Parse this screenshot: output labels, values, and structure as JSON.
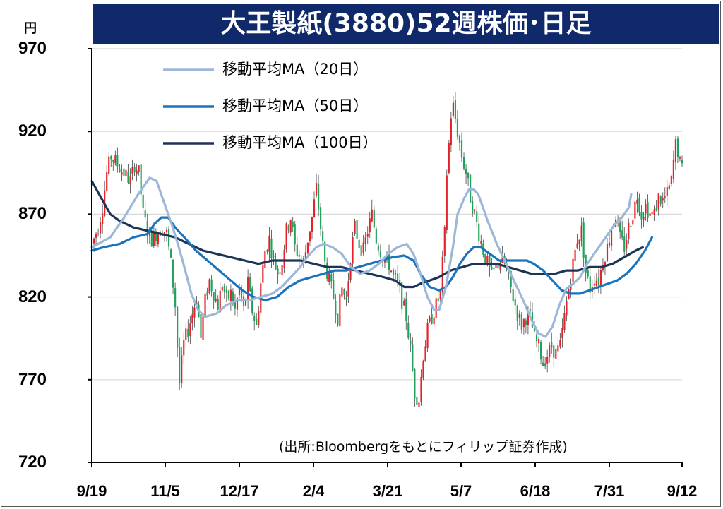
{
  "title": "大王製紙(3880)52週株価･日足",
  "unit": "円",
  "source": "(出所:Bloombergをもとにフィリップ証券作成)",
  "colors": {
    "title_bg": "#10296b",
    "title_text": "#ffffff",
    "up_candle": "#e8202a",
    "down_candle": "#1fa35b",
    "ma20": "#9db7d9",
    "ma50": "#1b74bb",
    "ma100": "#1c3455",
    "grid": "#d9d9d9"
  },
  "chart_data": {
    "type": "candlestick",
    "title": "大王製紙(3880)52週株価･日足",
    "ylabel": "円",
    "ylim": [
      720,
      970
    ],
    "yticks": [
      970,
      920,
      870,
      820,
      770,
      720
    ],
    "grid": "horizontal",
    "legend_position": "top-left",
    "x_tick_labels": [
      "9/19",
      "11/5",
      "12/17",
      "2/4",
      "3/21",
      "5/7",
      "6/18",
      "7/31",
      "9/12"
    ],
    "x_tick_positions": [
      0,
      32,
      62,
      94,
      126,
      158,
      190,
      222,
      254
    ],
    "n_days": 255,
    "price_anchors": [
      [
        0,
        852
      ],
      [
        3,
        862
      ],
      [
        5,
        875
      ],
      [
        7,
        895
      ],
      [
        9,
        905
      ],
      [
        12,
        900
      ],
      [
        15,
        895
      ],
      [
        18,
        890
      ],
      [
        20,
        900
      ],
      [
        22,
        895
      ],
      [
        24,
        870
      ],
      [
        26,
        860
      ],
      [
        28,
        855
      ],
      [
        30,
        858
      ],
      [
        33,
        862
      ],
      [
        35,
        858
      ],
      [
        37,
        840
      ],
      [
        39,
        815
      ],
      [
        40,
        790
      ],
      [
        41,
        768
      ],
      [
        43,
        792
      ],
      [
        45,
        800
      ],
      [
        47,
        810
      ],
      [
        49,
        820
      ],
      [
        51,
        795
      ],
      [
        53,
        818
      ],
      [
        55,
        830
      ],
      [
        57,
        822
      ],
      [
        59,
        815
      ],
      [
        61,
        828
      ],
      [
        63,
        818
      ],
      [
        65,
        822
      ],
      [
        67,
        812
      ],
      [
        69,
        825
      ],
      [
        71,
        812
      ],
      [
        73,
        828
      ],
      [
        75,
        812
      ],
      [
        77,
        802
      ],
      [
        79,
        828
      ],
      [
        81,
        848
      ],
      [
        83,
        855
      ],
      [
        85,
        842
      ],
      [
        87,
        835
      ],
      [
        89,
        842
      ],
      [
        91,
        860
      ],
      [
        93,
        868
      ],
      [
        95,
        850
      ],
      [
        97,
        845
      ],
      [
        99,
        840
      ],
      [
        101,
        855
      ],
      [
        103,
        868
      ],
      [
        105,
        886
      ],
      [
        107,
        862
      ],
      [
        109,
        840
      ],
      [
        111,
        830
      ],
      [
        113,
        820
      ],
      [
        115,
        808
      ],
      [
        117,
        825
      ],
      [
        119,
        818
      ],
      [
        121,
        845
      ],
      [
        123,
        862
      ],
      [
        125,
        852
      ],
      [
        127,
        848
      ],
      [
        129,
        860
      ],
      [
        131,
        870
      ],
      [
        133,
        855
      ],
      [
        135,
        848
      ],
      [
        137,
        842
      ],
      [
        139,
        840
      ],
      [
        141,
        832
      ],
      [
        143,
        828
      ],
      [
        145,
        818
      ],
      [
        147,
        808
      ],
      [
        149,
        788
      ],
      [
        151,
        762
      ],
      [
        153,
        758
      ],
      [
        155,
        785
      ],
      [
        157,
        800
      ],
      [
        159,
        808
      ],
      [
        161,
        815
      ],
      [
        163,
        822
      ],
      [
        165,
        858
      ],
      [
        166,
        895
      ],
      [
        168,
        930
      ],
      [
        169,
        935
      ],
      [
        171,
        920
      ],
      [
        173,
        905
      ],
      [
        175,
        895
      ],
      [
        177,
        880
      ],
      [
        179,
        870
      ],
      [
        181,
        858
      ],
      [
        183,
        848
      ],
      [
        185,
        840
      ],
      [
        187,
        832
      ],
      [
        189,
        838
      ],
      [
        191,
        842
      ],
      [
        193,
        840
      ],
      [
        195,
        830
      ],
      [
        197,
        820
      ],
      [
        199,
        810
      ],
      [
        201,
        803
      ],
      [
        203,
        808
      ],
      [
        205,
        808
      ],
      [
        207,
        795
      ],
      [
        209,
        790
      ],
      [
        211,
        780
      ],
      [
        213,
        785
      ],
      [
        215,
        790
      ],
      [
        217,
        786
      ],
      [
        219,
        790
      ],
      [
        221,
        808
      ],
      [
        223,
        825
      ],
      [
        225,
        840
      ],
      [
        227,
        855
      ],
      [
        229,
        860
      ],
      [
        231,
        835
      ],
      [
        233,
        825
      ],
      [
        235,
        832
      ],
      [
        237,
        830
      ],
      [
        239,
        842
      ],
      [
        241,
        850
      ],
      [
        243,
        862
      ],
      [
        245,
        870
      ],
      [
        247,
        855
      ],
      [
        249,
        850
      ],
      [
        251,
        862
      ],
      [
        253,
        870
      ],
      [
        255,
        882
      ],
      [
        257,
        870
      ],
      [
        259,
        875
      ],
      [
        261,
        870
      ],
      [
        263,
        870
      ],
      [
        265,
        880
      ],
      [
        267,
        878
      ],
      [
        269,
        882
      ],
      [
        271,
        890
      ],
      [
        272,
        902
      ],
      [
        273,
        912
      ],
      [
        274,
        908
      ],
      [
        275,
        900
      ],
      [
        276,
        897
      ]
    ],
    "ma20_points": [
      [
        0,
        850
      ],
      [
        8,
        856
      ],
      [
        14,
        868
      ],
      [
        20,
        882
      ],
      [
        25,
        892
      ],
      [
        28,
        890
      ],
      [
        31,
        878
      ],
      [
        35,
        862
      ],
      [
        38,
        848
      ],
      [
        40,
        838
      ],
      [
        43,
        822
      ],
      [
        46,
        812
      ],
      [
        49,
        808
      ],
      [
        54,
        810
      ],
      [
        58,
        815
      ],
      [
        63,
        818
      ],
      [
        68,
        818
      ],
      [
        73,
        820
      ],
      [
        78,
        822
      ],
      [
        82,
        826
      ],
      [
        86,
        832
      ],
      [
        90,
        838
      ],
      [
        93,
        844
      ],
      [
        97,
        850
      ],
      [
        100,
        852
      ],
      [
        104,
        850
      ],
      [
        108,
        846
      ],
      [
        112,
        838
      ],
      [
        116,
        834
      ],
      [
        120,
        836
      ],
      [
        124,
        840
      ],
      [
        128,
        846
      ],
      [
        132,
        850
      ],
      [
        136,
        852
      ],
      [
        139,
        846
      ],
      [
        142,
        834
      ],
      [
        145,
        820
      ],
      [
        148,
        812
      ],
      [
        150,
        812
      ],
      [
        153,
        826
      ],
      [
        156,
        850
      ],
      [
        158,
        870
      ],
      [
        161,
        880
      ],
      [
        163,
        885
      ],
      [
        165,
        885
      ],
      [
        167,
        882
      ],
      [
        171,
        866
      ],
      [
        175,
        852
      ],
      [
        179,
        840
      ],
      [
        183,
        828
      ],
      [
        187,
        816
      ],
      [
        190,
        806
      ],
      [
        193,
        798
      ],
      [
        196,
        796
      ],
      [
        199,
        802
      ],
      [
        202,
        815
      ],
      [
        205,
        825
      ],
      [
        208,
        828
      ],
      [
        211,
        832
      ],
      [
        214,
        840
      ],
      [
        217,
        846
      ],
      [
        220,
        852
      ],
      [
        223,
        858
      ],
      [
        226,
        864
      ],
      [
        229,
        868
      ],
      [
        232,
        874
      ],
      [
        233,
        882
      ]
    ],
    "ma50_points": [
      [
        0,
        848
      ],
      [
        5,
        850
      ],
      [
        12,
        852
      ],
      [
        18,
        856
      ],
      [
        24,
        858
      ],
      [
        27,
        864
      ],
      [
        30,
        868
      ],
      [
        33,
        868
      ],
      [
        36,
        862
      ],
      [
        40,
        856
      ],
      [
        45,
        848
      ],
      [
        50,
        842
      ],
      [
        55,
        836
      ],
      [
        60,
        830
      ],
      [
        65,
        824
      ],
      [
        70,
        820
      ],
      [
        75,
        818
      ],
      [
        80,
        820
      ],
      [
        85,
        826
      ],
      [
        90,
        830
      ],
      [
        95,
        832
      ],
      [
        100,
        834
      ],
      [
        105,
        836
      ],
      [
        110,
        836
      ],
      [
        115,
        838
      ],
      [
        120,
        840
      ],
      [
        125,
        842
      ],
      [
        130,
        844
      ],
      [
        135,
        845
      ],
      [
        139,
        842
      ],
      [
        142,
        834
      ],
      [
        146,
        826
      ],
      [
        150,
        824
      ],
      [
        153,
        826
      ],
      [
        156,
        832
      ],
      [
        159,
        840
      ],
      [
        162,
        846
      ],
      [
        165,
        850
      ],
      [
        168,
        850
      ],
      [
        172,
        846
      ],
      [
        176,
        842
      ],
      [
        180,
        842
      ],
      [
        184,
        842
      ],
      [
        188,
        842
      ],
      [
        191,
        840
      ],
      [
        195,
        836
      ],
      [
        199,
        830
      ],
      [
        203,
        824
      ],
      [
        207,
        822
      ],
      [
        211,
        822
      ],
      [
        215,
        824
      ],
      [
        219,
        826
      ],
      [
        223,
        828
      ],
      [
        227,
        830
      ],
      [
        231,
        834
      ],
      [
        235,
        840
      ],
      [
        239,
        848
      ],
      [
        242,
        856
      ]
    ],
    "ma100_points": [
      [
        0,
        890
      ],
      [
        4,
        880
      ],
      [
        8,
        870
      ],
      [
        12,
        866
      ],
      [
        18,
        862
      ],
      [
        24,
        860
      ],
      [
        30,
        858
      ],
      [
        36,
        856
      ],
      [
        42,
        852
      ],
      [
        48,
        848
      ],
      [
        54,
        846
      ],
      [
        60,
        844
      ],
      [
        66,
        842
      ],
      [
        72,
        840
      ],
      [
        78,
        842
      ],
      [
        84,
        842
      ],
      [
        90,
        842
      ],
      [
        96,
        840
      ],
      [
        102,
        838
      ],
      [
        108,
        838
      ],
      [
        114,
        836
      ],
      [
        120,
        834
      ],
      [
        126,
        832
      ],
      [
        131,
        830
      ],
      [
        135,
        826
      ],
      [
        139,
        826
      ],
      [
        142,
        828
      ],
      [
        146,
        830
      ],
      [
        150,
        832
      ],
      [
        155,
        836
      ],
      [
        160,
        838
      ],
      [
        165,
        840
      ],
      [
        170,
        840
      ],
      [
        175,
        840
      ],
      [
        180,
        838
      ],
      [
        185,
        836
      ],
      [
        190,
        834
      ],
      [
        195,
        834
      ],
      [
        200,
        834
      ],
      [
        205,
        836
      ],
      [
        210,
        836
      ],
      [
        215,
        838
      ],
      [
        220,
        838
      ],
      [
        225,
        840
      ],
      [
        230,
        844
      ],
      [
        235,
        848
      ],
      [
        238,
        850
      ]
    ],
    "legend": [
      "移動平均MA（20日）",
      "移動平均MA（50日）",
      "移動平均MA（100日）"
    ]
  }
}
